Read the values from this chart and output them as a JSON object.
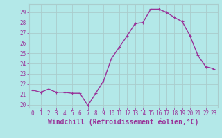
{
  "x": [
    0,
    1,
    2,
    3,
    4,
    5,
    6,
    7,
    8,
    9,
    10,
    11,
    12,
    13,
    14,
    15,
    16,
    17,
    18,
    19,
    20,
    21,
    22,
    23
  ],
  "y": [
    21.4,
    21.2,
    21.5,
    21.2,
    21.2,
    21.1,
    21.1,
    19.9,
    21.1,
    22.3,
    24.5,
    25.6,
    26.7,
    27.9,
    28.0,
    29.3,
    29.3,
    29.0,
    28.5,
    28.1,
    26.7,
    24.8,
    23.7,
    23.5
  ],
  "line_color": "#993399",
  "marker_color": "#993399",
  "bg_color": "#b3e8e8",
  "grid_color": "#aacccc",
  "xlabel": "Windchill (Refroidissement éolien,°C)",
  "xlabel_color": "#993399",
  "ylim": [
    19.7,
    29.8
  ],
  "yticks": [
    20,
    21,
    22,
    23,
    24,
    25,
    26,
    27,
    28,
    29
  ],
  "xticks": [
    0,
    1,
    2,
    3,
    4,
    5,
    6,
    7,
    8,
    9,
    10,
    11,
    12,
    13,
    14,
    15,
    16,
    17,
    18,
    19,
    20,
    21,
    22,
    23
  ],
  "tick_fontsize": 5.5,
  "xlabel_fontsize": 7.0,
  "line_width": 1.0,
  "marker_size": 2.5
}
